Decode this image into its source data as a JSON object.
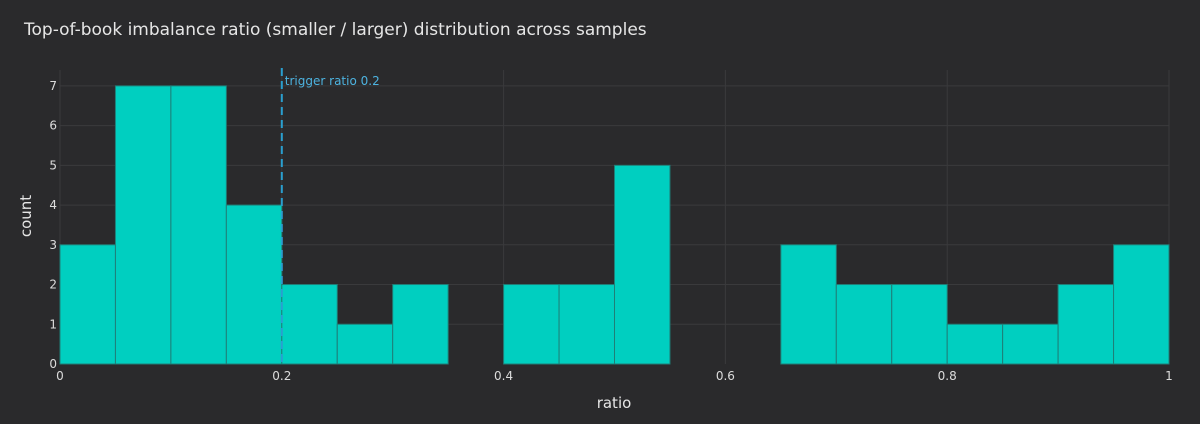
{
  "chart_data": {
    "type": "bar",
    "title": "Top-of-book imbalance ratio (smaller / larger) distribution across samples",
    "xlabel": "ratio",
    "ylabel": "count",
    "xlim": [
      0,
      1
    ],
    "ylim": [
      0,
      7.4
    ],
    "grid": true,
    "bin_width": 0.05,
    "bins_start": [
      0,
      0.05,
      0.1,
      0.15,
      0.2,
      0.25,
      0.3,
      0.35,
      0.4,
      0.45,
      0.5,
      0.55,
      0.6,
      0.65,
      0.7,
      0.75,
      0.8,
      0.85,
      0.9,
      0.95
    ],
    "values": [
      3,
      7,
      7,
      4,
      2,
      1,
      2,
      0,
      2,
      2,
      5,
      0,
      0,
      3,
      2,
      2,
      1,
      1,
      2,
      3
    ],
    "x_ticks": [
      0,
      0.2,
      0.4,
      0.6,
      0.8,
      1
    ],
    "x_tick_labels": [
      "0",
      "0.2",
      "0.4",
      "0.6",
      "0.8",
      "1"
    ],
    "y_ticks": [
      0,
      1,
      2,
      3,
      4,
      5,
      6,
      7
    ],
    "y_tick_labels": [
      "0",
      "1",
      "2",
      "3",
      "4",
      "5",
      "6",
      "7"
    ],
    "annotation": {
      "label": "trigger ratio 0.2",
      "x": 0.2
    },
    "colors": {
      "background": "#2a2a2c",
      "bar_fill": "#00cfc0",
      "bar_edge": "#1f7f78",
      "grid": "#3a3a3c",
      "annotation_line": "#2a9fcf",
      "annotation_text": "#4db3e0"
    }
  }
}
